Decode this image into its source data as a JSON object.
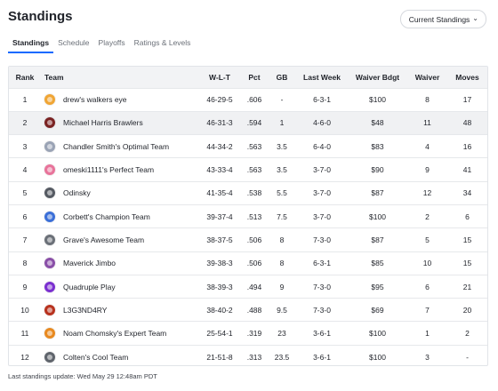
{
  "header": {
    "title": "Standings",
    "dropdown_label": "Current Standings"
  },
  "tabs": [
    {
      "label": "Standings",
      "active": true
    },
    {
      "label": "Schedule",
      "active": false
    },
    {
      "label": "Playoffs",
      "active": false
    },
    {
      "label": "Ratings & Levels",
      "active": false
    }
  ],
  "table": {
    "columns": [
      "Rank",
      "Team",
      "W-L-T",
      "Pct",
      "GB",
      "Last Week",
      "Waiver Bdgt",
      "Waiver",
      "Moves"
    ],
    "rows": [
      {
        "rank": "1",
        "team": "drew's walkers eye",
        "wlt": "46-29-5",
        "pct": ".606",
        "gb": "-",
        "last_week": "6-3-1",
        "budget": "$100",
        "waiver": "8",
        "moves": "17",
        "avatar_color": "#f0a534"
      },
      {
        "rank": "2",
        "team": "Michael Harris Brawlers",
        "wlt": "46-31-3",
        "pct": ".594",
        "gb": "1",
        "last_week": "4-6-0",
        "budget": "$48",
        "waiver": "11",
        "moves": "48",
        "avatar_color": "#7a2222"
      },
      {
        "rank": "3",
        "team": "Chandler Smith's Optimal Team",
        "wlt": "44-34-2",
        "pct": ".563",
        "gb": "3.5",
        "last_week": "6-4-0",
        "budget": "$83",
        "waiver": "4",
        "moves": "16",
        "avatar_color": "#9aa3b5"
      },
      {
        "rank": "4",
        "team": "omeski1111's Perfect Team",
        "wlt": "43-33-4",
        "pct": ".563",
        "gb": "3.5",
        "last_week": "3-7-0",
        "budget": "$90",
        "waiver": "9",
        "moves": "41",
        "avatar_color": "#e8739a"
      },
      {
        "rank": "5",
        "team": "Odinsky",
        "wlt": "41-35-4",
        "pct": ".538",
        "gb": "5.5",
        "last_week": "3-7-0",
        "budget": "$87",
        "waiver": "12",
        "moves": "34",
        "avatar_color": "#555a62"
      },
      {
        "rank": "6",
        "team": "Corbett's Champion Team",
        "wlt": "39-37-4",
        "pct": ".513",
        "gb": "7.5",
        "last_week": "3-7-0",
        "budget": "$100",
        "waiver": "2",
        "moves": "6",
        "avatar_color": "#3b6fd8"
      },
      {
        "rank": "7",
        "team": "Grave's Awesome Team",
        "wlt": "38-37-5",
        "pct": ".506",
        "gb": "8",
        "last_week": "7-3-0",
        "budget": "$87",
        "waiver": "5",
        "moves": "15",
        "avatar_color": "#6b7078"
      },
      {
        "rank": "8",
        "team": "Maverick Jimbo",
        "wlt": "39-38-3",
        "pct": ".506",
        "gb": "8",
        "last_week": "6-3-1",
        "budget": "$85",
        "waiver": "10",
        "moves": "15",
        "avatar_color": "#8a4fa8"
      },
      {
        "rank": "9",
        "team": "Quadruple Play",
        "wlt": "38-39-3",
        "pct": ".494",
        "gb": "9",
        "last_week": "7-3-0",
        "budget": "$95",
        "waiver": "6",
        "moves": "21",
        "avatar_color": "#7b2fd0"
      },
      {
        "rank": "10",
        "team": "L3G3ND4RY",
        "wlt": "38-40-2",
        "pct": ".488",
        "gb": "9.5",
        "last_week": "7-3-0",
        "budget": "$69",
        "waiver": "7",
        "moves": "20",
        "avatar_color": "#b8321e"
      },
      {
        "rank": "11",
        "team": "Noam Chomsky's Expert Team",
        "wlt": "25-54-1",
        "pct": ".319",
        "gb": "23",
        "last_week": "3-6-1",
        "budget": "$100",
        "waiver": "1",
        "moves": "2",
        "avatar_color": "#e8891f"
      },
      {
        "rank": "12",
        "team": "Colten's Cool Team",
        "wlt": "21-51-8",
        "pct": ".313",
        "gb": "23.5",
        "last_week": "3-6-1",
        "budget": "$100",
        "waiver": "3",
        "moves": "-",
        "avatar_color": "#5f646c"
      }
    ]
  },
  "footer": "Last standings update: Wed May 29 12:48am PDT",
  "colors": {
    "accent": "#0f69ff",
    "highlight_row": "#f0f1f3"
  }
}
